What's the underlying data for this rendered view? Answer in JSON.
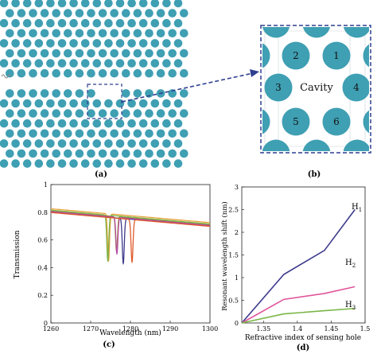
{
  "colors": {
    "hole": "#3f9fb3",
    "arrow": "#2f3f8f",
    "axis": "#222222",
    "series": {
      "H1": "#3d3a8c",
      "H2": "#e0559a",
      "H3": "#7ab648"
    },
    "transmission": [
      "#e8a13a",
      "#9c9c2a",
      "#3d3a8c",
      "#7ab648",
      "#b74ba8",
      "#e05a2a"
    ]
  },
  "panels": {
    "a": {
      "label": "(a)"
    },
    "b": {
      "label": "(b)",
      "cavity_label": "Cavity",
      "hole_numbers": [
        "1",
        "2",
        "3",
        "4",
        "5",
        "6"
      ]
    },
    "c": {
      "label": "(c)"
    },
    "d": {
      "label": "(d)"
    }
  },
  "chart_data": [
    {
      "type": "line",
      "panel": "c",
      "xlabel": "Wavelength (nm)",
      "ylabel": "Transmission",
      "xlim": [
        1260,
        1300
      ],
      "ylim": [
        0,
        1
      ],
      "xticks": [
        "1260",
        "1270",
        "1280",
        "1290",
        "1300"
      ],
      "yticks": [
        "0",
        "0.2",
        "0.4",
        "0.6",
        "0.8",
        "1"
      ],
      "grid": false,
      "baseline": {
        "x": [
          1260,
          1300
        ],
        "y": [
          0.81,
          0.71
        ]
      },
      "series": [
        {
          "color_index": 0,
          "dip_x": 1274.5,
          "dip_y": 0.45,
          "offset": 0.015
        },
        {
          "color_index": 1,
          "dip_x": 1276.5,
          "dip_y": 0.52,
          "offset": 0.0
        },
        {
          "color_index": 2,
          "dip_x": 1278.2,
          "dip_y": 0.43,
          "offset": -0.01
        },
        {
          "color_index": 3,
          "dip_x": 1274.3,
          "dip_y": 0.45,
          "offset": 0.005
        },
        {
          "color_index": 4,
          "dip_x": 1276.6,
          "dip_y": 0.5,
          "offset": -0.005
        },
        {
          "color_index": 5,
          "dip_x": 1280.4,
          "dip_y": 0.44,
          "offset": -0.012
        }
      ]
    },
    {
      "type": "line",
      "panel": "d",
      "xlabel": "Refractive index of sensing hole",
      "ylabel": "Resonant wavelength shift (nm)",
      "xlim": [
        1.318,
        1.5
      ],
      "ylim": [
        0,
        3
      ],
      "xticks": [
        "1.35",
        "1.4",
        "1.45",
        "1.5"
      ],
      "xtick_values": [
        1.35,
        1.4,
        1.45,
        1.5
      ],
      "yticks": [
        "0",
        "0.5",
        "1",
        "1.5",
        "2",
        "2.5",
        "3"
      ],
      "ytick_values": [
        0,
        0.5,
        1,
        1.5,
        2,
        2.5,
        3
      ],
      "grid": false,
      "series": [
        {
          "name": "H",
          "sub": "1",
          "color": "H1",
          "x": [
            1.318,
            1.38,
            1.44,
            1.485
          ],
          "y": [
            0,
            1.07,
            1.6,
            2.5
          ]
        },
        {
          "name": "H",
          "sub": "2",
          "color": "H2",
          "x": [
            1.318,
            1.38,
            1.44,
            1.485
          ],
          "y": [
            0,
            0.52,
            0.65,
            0.8
          ]
        },
        {
          "name": "H",
          "sub": "3",
          "color": "H3",
          "x": [
            1.318,
            1.38,
            1.44,
            1.485
          ],
          "y": [
            0,
            0.2,
            0.27,
            0.32
          ]
        }
      ]
    }
  ]
}
